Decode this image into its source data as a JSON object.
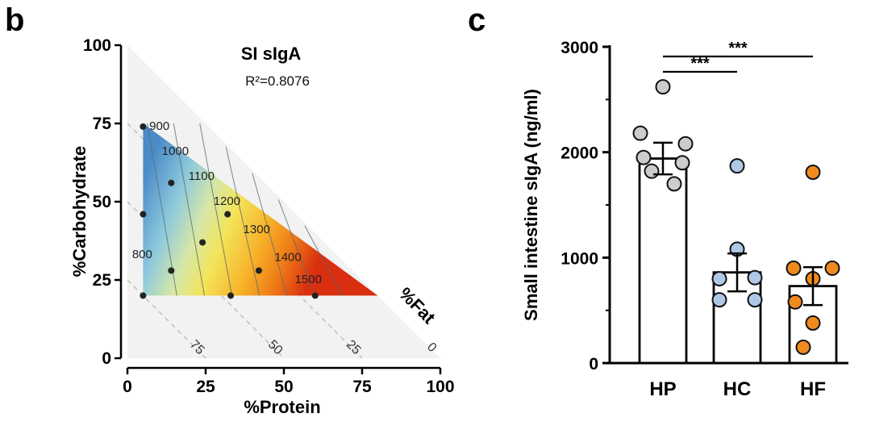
{
  "panel_b_letter": "b",
  "panel_c_letter": "c",
  "chart_data": [
    {
      "type": "ternary-contour",
      "title": "SI sIgA",
      "annotation": "R²=0.8076",
      "xlabel": "%Protein",
      "ylabel": "%Carbohydrate",
      "third_axis_label": "%Fat",
      "x_ticks": [
        "0",
        "25",
        "50",
        "75",
        "100"
      ],
      "y_ticks": [
        "0",
        "25",
        "50",
        "75",
        "100"
      ],
      "fat_ticks": [
        {
          "label": "75",
          "value": 75
        },
        {
          "label": "50",
          "value": 50
        },
        {
          "label": "25",
          "value": 25
        },
        {
          "label": "0",
          "value": 0
        }
      ],
      "xlim": [
        0,
        100
      ],
      "ylim": [
        0,
        100
      ],
      "region": {
        "protein_min": 5,
        "carb_min": 20,
        "carb_max": 75
      },
      "contour_levels": [
        {
          "label": "800",
          "value": 800
        },
        {
          "label": "900",
          "value": 900
        },
        {
          "label": "1000",
          "value": 1000
        },
        {
          "label": "1100",
          "value": 1100
        },
        {
          "label": "1200",
          "value": 1200
        },
        {
          "label": "1300",
          "value": 1300
        },
        {
          "label": "1400",
          "value": 1400
        },
        {
          "label": "1500",
          "value": 1500
        }
      ],
      "diet_points": [
        {
          "protein": 5,
          "carb": 74
        },
        {
          "protein": 14,
          "carb": 56
        },
        {
          "protein": 32,
          "carb": 46
        },
        {
          "protein": 5,
          "carb": 46
        },
        {
          "protein": 24,
          "carb": 37
        },
        {
          "protein": 14,
          "carb": 28
        },
        {
          "protein": 42,
          "carb": 28
        },
        {
          "protein": 5,
          "carb": 20
        },
        {
          "protein": 33,
          "carb": 20
        },
        {
          "protein": 60,
          "carb": 20
        }
      ],
      "colors": {
        "low": "#4a8bc8",
        "mid": "#f3e45a",
        "high": "#d92e10",
        "background": "#f2f2f2"
      }
    },
    {
      "type": "bar",
      "ylabel": "Small intestine sIgA (ng/ml)",
      "categories": [
        "HP",
        "HC",
        "HF"
      ],
      "ylim": [
        0,
        3000
      ],
      "y_ticks": [
        "0",
        "1000",
        "2000",
        "3000"
      ],
      "series": [
        {
          "name": "",
          "mean": 1940,
          "sem": 150,
          "color": "#cccccc",
          "points": [
            2620,
            2180,
            2080,
            1950,
            1900,
            1820,
            1700
          ]
        },
        {
          "name": "",
          "mean": 860,
          "sem": 180,
          "color": "#aec8e6",
          "points": [
            1870,
            1080,
            810,
            800,
            600,
            600
          ]
        },
        {
          "name": "",
          "mean": 730,
          "sem": 180,
          "color": "#ef8a20",
          "points": [
            1810,
            900,
            900,
            800,
            580,
            380,
            150
          ]
        }
      ],
      "significance": [
        {
          "from": "HP",
          "to": "HC",
          "label": "***"
        },
        {
          "from": "HP",
          "to": "HF",
          "label": "***"
        }
      ]
    }
  ]
}
